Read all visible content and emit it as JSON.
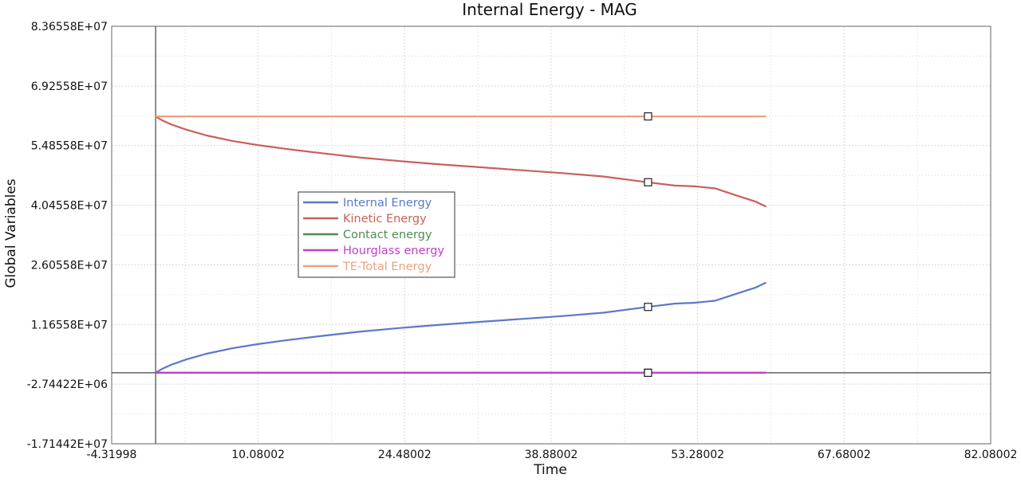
{
  "chart_data": {
    "type": "line",
    "title": "Internal Energy - MAG",
    "xlabel": "Time",
    "ylabel": "Global Variables",
    "xlim": [
      -4.31998,
      82.08002
    ],
    "ylim": [
      -17144200,
      83655800
    ],
    "x_ticks": [
      "-4.31998",
      "10.08002",
      "24.48002",
      "38.88002",
      "53.28002",
      "67.68002",
      "82.08002"
    ],
    "y_ticks": [
      "8.36558E+07",
      "6.92558E+07",
      "5.48558E+07",
      "4.04558E+07",
      "2.60558E+07",
      "1.16558E+07",
      "-2.74422E+06",
      "-1.71442E+07"
    ],
    "grid": true,
    "legend_position": "center-left",
    "series": [
      {
        "name": "Internal Energy",
        "color": "#5b78c8",
        "marker_x": 48.4,
        "x": [
          0,
          0.6,
          1.5,
          3,
          5,
          7.5,
          10,
          13,
          16,
          20,
          24,
          28,
          32,
          36,
          40,
          44,
          48.4,
          51,
          53,
          55,
          57,
          59,
          60
        ],
        "y": [
          0,
          900000,
          1900000,
          3200000,
          4600000,
          5900000,
          6900000,
          7900000,
          8800000,
          9900000,
          10800000,
          11600000,
          12300000,
          13000000,
          13700000,
          14500000,
          15900000,
          16700000,
          16900000,
          17400000,
          19000000,
          20600000,
          21800000
        ]
      },
      {
        "name": "Kinetic Energy",
        "color": "#c8605a",
        "marker_x": 48.4,
        "x": [
          0,
          0.6,
          1.5,
          3,
          5,
          7.5,
          10,
          13,
          16,
          20,
          24,
          28,
          32,
          36,
          40,
          44,
          48.4,
          51,
          53,
          55,
          57,
          59,
          60
        ],
        "y": [
          61900000,
          61000000,
          60000000,
          58700000,
          57300000,
          56000000,
          55000000,
          54000000,
          53100000,
          52000000,
          51100000,
          50300000,
          49600000,
          48900000,
          48200000,
          47400000,
          46000000,
          45200000,
          45000000,
          44500000,
          42900000,
          41300000,
          40100000
        ]
      },
      {
        "name": "Contact energy",
        "color": "#4e8c4e",
        "marker_x": 48.4,
        "x": [
          0,
          60
        ],
        "y": [
          0,
          0
        ]
      },
      {
        "name": "Hourglass energy",
        "color": "#c040c8",
        "marker_x": 48.4,
        "x": [
          0,
          60
        ],
        "y": [
          0,
          0
        ]
      },
      {
        "name": "TE-Total Energy",
        "color": "#f0a080",
        "marker_x": 48.4,
        "x": [
          0,
          60
        ],
        "y": [
          61900000,
          61900000
        ]
      }
    ]
  }
}
